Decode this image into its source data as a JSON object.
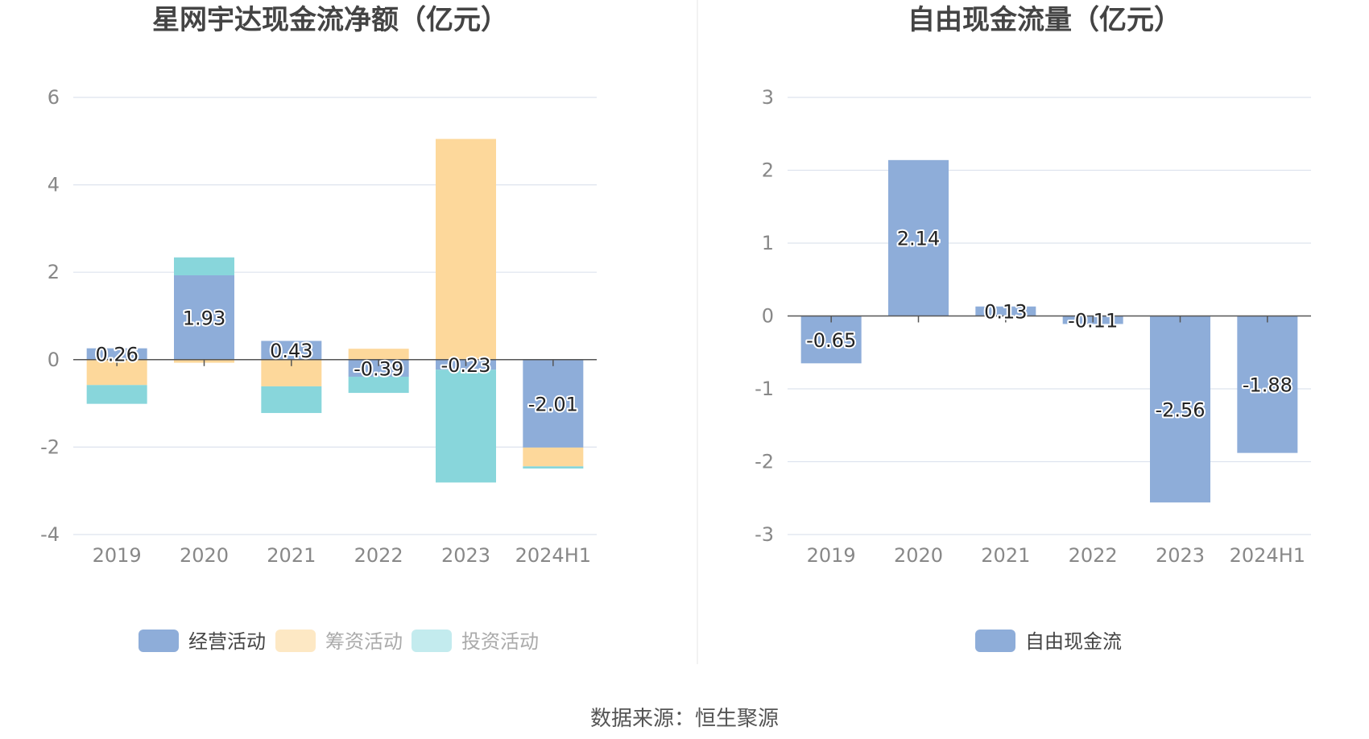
{
  "footer": {
    "source": "数据来源：恒生聚源"
  },
  "chart_data": [
    {
      "type": "bar",
      "stacked": true,
      "title": "星网宇达现金流净额（亿元）",
      "categories": [
        "2019",
        "2020",
        "2021",
        "2022",
        "2023",
        "2024H1"
      ],
      "ylim": [
        -4,
        6
      ],
      "yticks": [
        6,
        4,
        2,
        0,
        -2,
        -4
      ],
      "grid": true,
      "legend_position": "bottom",
      "labeled_series": "经营活动",
      "series": [
        {
          "name": "经营活动",
          "color": "#8eadd9",
          "values": [
            0.26,
            1.93,
            0.43,
            -0.39,
            -0.23,
            -2.01
          ]
        },
        {
          "name": "筹资活动",
          "color": "#fdd89b",
          "values": [
            -0.58,
            -0.07,
            -0.61,
            0.25,
            5.05,
            -0.43
          ]
        },
        {
          "name": "投资活动",
          "color": "#88d6db",
          "values": [
            -0.43,
            0.41,
            -0.61,
            -0.37,
            -2.58,
            -0.05
          ]
        }
      ],
      "data_labels": [
        "0.26",
        "1.93",
        "0.43",
        "-0.39",
        "-0.23",
        "-2.01"
      ]
    },
    {
      "type": "bar",
      "title": "自由现金流量（亿元）",
      "categories": [
        "2019",
        "2020",
        "2021",
        "2022",
        "2023",
        "2024H1"
      ],
      "ylim": [
        -3,
        3
      ],
      "yticks": [
        3,
        2,
        1,
        0,
        -1,
        -2,
        -3
      ],
      "grid": true,
      "legend_position": "bottom",
      "labeled_series": "自由现金流",
      "series": [
        {
          "name": "自由现金流",
          "color": "#8eadd9",
          "values": [
            -0.65,
            2.14,
            0.13,
            -0.11,
            -2.56,
            -1.88
          ]
        }
      ],
      "data_labels": [
        "-0.65",
        "2.14",
        "0.13",
        "-0.11",
        "-2.56",
        "-1.88"
      ]
    }
  ]
}
